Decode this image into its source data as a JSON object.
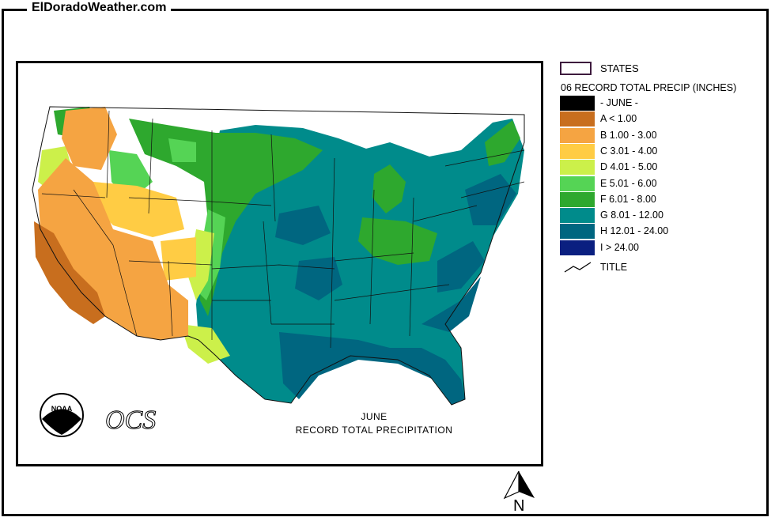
{
  "site": {
    "name": "ElDoradoWeather.com"
  },
  "map": {
    "month_title": "JUNE",
    "subtitle": "RECORD TOTAL PRECIPITATION",
    "logos": {
      "noaa": "NOAA",
      "ocs": "OCS"
    }
  },
  "legend": {
    "states_label": "STATES",
    "title": "06 RECORD TOTAL PRECIP (INCHES)",
    "items": [
      {
        "label": "- JUNE -",
        "color": "#000000"
      },
      {
        "label": "A < 1.00",
        "color": "#c86e1e"
      },
      {
        "label": "B 1.00 - 3.00",
        "color": "#f5a442"
      },
      {
        "label": "C 3.01 - 4.00",
        "color": "#ffcc44"
      },
      {
        "label": "D 4.01 - 5.00",
        "color": "#ccf04a"
      },
      {
        "label": "E 5.01 - 6.00",
        "color": "#55d455"
      },
      {
        "label": "F 6.01 - 8.00",
        "color": "#2ea82e"
      },
      {
        "label": "G 8.01 - 12.00",
        "color": "#008b8b"
      },
      {
        "label": "H 12.01 - 24.00",
        "color": "#006680"
      },
      {
        "label": "I > 24.00",
        "color": "#0a1f80"
      }
    ],
    "title_symbol_label": "TITLE"
  },
  "north_arrow": {
    "letter": "N"
  }
}
